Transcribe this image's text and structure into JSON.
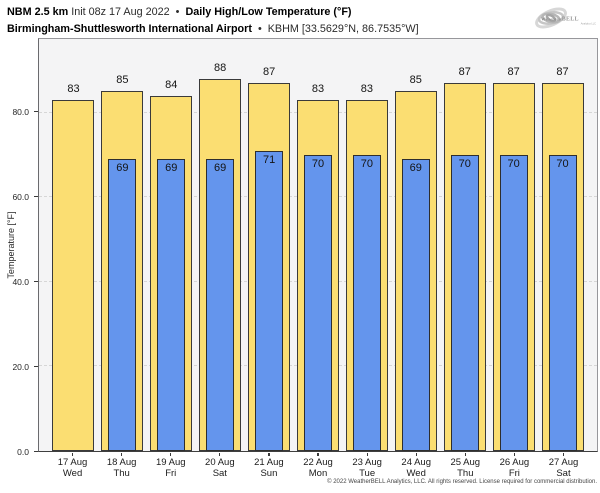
{
  "header": {
    "model": "NBM 2.5 km",
    "init": "Init 08z 17 Aug 2022",
    "sep": "•",
    "product": "Daily High/Low Temperature (°F)",
    "station_name": "Birmingham-Shuttlesworth International Airport",
    "station_id": "KBHM [33.5629°N, 86.7535°W]"
  },
  "logo": {
    "brand_weather": "Weather",
    "brand_bell": "BELL",
    "tagline": "Analytics LLC"
  },
  "chart_data": {
    "type": "bar",
    "title": "Daily High/Low Temperature (°F)",
    "categories": [
      {
        "date": "17 Aug",
        "day": "Wed"
      },
      {
        "date": "18 Aug",
        "day": "Thu"
      },
      {
        "date": "19 Aug",
        "day": "Fri"
      },
      {
        "date": "20 Aug",
        "day": "Sat"
      },
      {
        "date": "21 Aug",
        "day": "Sun"
      },
      {
        "date": "22 Aug",
        "day": "Mon"
      },
      {
        "date": "23 Aug",
        "day": "Tue"
      },
      {
        "date": "24 Aug",
        "day": "Wed"
      },
      {
        "date": "25 Aug",
        "day": "Thu"
      },
      {
        "date": "26 Aug",
        "day": "Fri"
      },
      {
        "date": "27 Aug",
        "day": "Sat"
      }
    ],
    "series": [
      {
        "name": "Daily High",
        "color": "#FBDE72",
        "edge_color": "#3a3a3a",
        "values": [
          83,
          85,
          84,
          88,
          87,
          83,
          83,
          85,
          87,
          87,
          87
        ]
      },
      {
        "name": "Daily Low",
        "color": "#6495ED",
        "edge_color": "#2e2e2e",
        "values": [
          null,
          69,
          69,
          69,
          71,
          70,
          70,
          69,
          70,
          70,
          70
        ]
      }
    ],
    "xlabel": "",
    "ylabel": "Temperature [°F]",
    "yticks": [
      0,
      20,
      40,
      60,
      80
    ],
    "ytick_labels": [
      "0.0",
      "20.0",
      "40.0",
      "60.0",
      "80.0"
    ],
    "ylim": [
      0,
      97.4
    ],
    "grid": "horizontal-dashed",
    "plot_bg": "#f4f4f5",
    "legend": "none"
  },
  "footer": {
    "copyright": "© 2022 WeatherBELL Analytics, LLC. All rights reserved. License required for commercial distribution."
  }
}
